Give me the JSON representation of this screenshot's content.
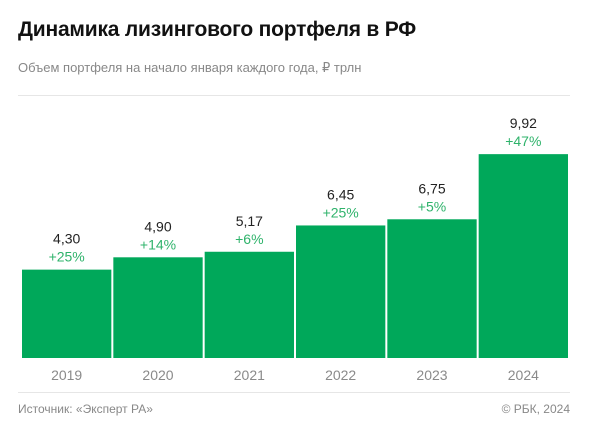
{
  "header": {
    "title": "Динамика лизингового портфеля в РФ",
    "subtitle": "Объем портфеля на начало января каждого года, ₽ трлн"
  },
  "footer": {
    "source": "Источник: «Эксперт РА»",
    "copyright": "© РБК, 2024"
  },
  "colors": {
    "bar": "#00a85a",
    "change_label": "#2fb36b",
    "value_label": "#222222",
    "axis_label": "#8a8a8a"
  },
  "chart_data": {
    "type": "bar",
    "title": "Динамика лизингового портфеля в РФ",
    "subtitle": "Объем портфеля на начало января каждого года, ₽ трлн",
    "categories": [
      "2019",
      "2020",
      "2021",
      "2022",
      "2023",
      "2024"
    ],
    "values": [
      4.3,
      4.9,
      5.17,
      6.45,
      6.75,
      9.92
    ],
    "value_labels": [
      "4,30",
      "4,90",
      "5,17",
      "6,45",
      "6,75",
      "9,92"
    ],
    "change_labels": [
      "+25%",
      "+14%",
      "+6%",
      "+25%",
      "+5%",
      "+47%"
    ],
    "ylim": [
      0,
      10
    ],
    "grid": false,
    "legend": "none"
  }
}
